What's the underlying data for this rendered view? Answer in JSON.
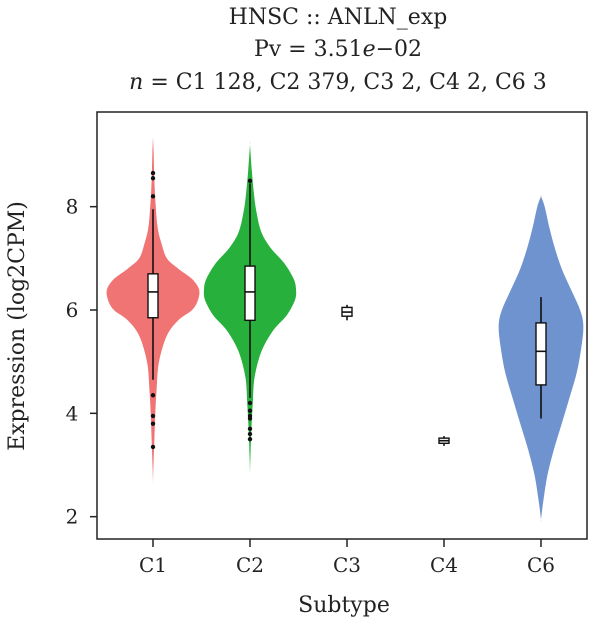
{
  "chart_data": {
    "type": "violin",
    "title_lines": {
      "line1": "HNSC :: ANLN_exp",
      "line2": "Pv = 3.51e−02",
      "line2_prefix": "Pv = 3.51",
      "line2_italic": "e",
      "line2_suffix": "−02",
      "line3_n": "n",
      "line3_rest": " = C1 128, C2 379, C3 2, C4 2, C6 3"
    },
    "xlabel": "Subtype",
    "ylabel": "Expression (log2CPM)",
    "ylim": [
      1.8,
      9.6
    ],
    "yticks": [
      2,
      4,
      6,
      8
    ],
    "categories": [
      "C1",
      "C2",
      "C3",
      "C4",
      "C6"
    ],
    "series": [
      {
        "name": "C1",
        "n": 128,
        "color": "#F07474",
        "has_violin": true,
        "violin_range": [
          2.65,
          9.35
        ],
        "violin_profile": [
          [
            2.65,
            0.0
          ],
          [
            3.0,
            0.01
          ],
          [
            3.5,
            0.03
          ],
          [
            4.0,
            0.05
          ],
          [
            4.5,
            0.08
          ],
          [
            5.0,
            0.13
          ],
          [
            5.5,
            0.3
          ],
          [
            5.8,
            0.55
          ],
          [
            6.0,
            0.85
          ],
          [
            6.2,
            0.98
          ],
          [
            6.4,
            1.0
          ],
          [
            6.6,
            0.85
          ],
          [
            6.8,
            0.55
          ],
          [
            7.0,
            0.3
          ],
          [
            7.3,
            0.18
          ],
          [
            7.6,
            0.1
          ],
          [
            8.0,
            0.06
          ],
          [
            8.5,
            0.03
          ],
          [
            9.0,
            0.015
          ],
          [
            9.35,
            0.0
          ]
        ],
        "box": {
          "q1": 5.85,
          "median": 6.35,
          "q3": 6.7,
          "whisker_low": 4.65,
          "whisker_high": 7.95
        },
        "outliers": [
          8.65,
          8.55,
          8.2,
          4.35,
          3.95,
          3.8,
          3.35
        ]
      },
      {
        "name": "C2",
        "n": 379,
        "color": "#27B03C",
        "has_violin": true,
        "violin_range": [
          2.85,
          9.2
        ],
        "violin_profile": [
          [
            2.85,
            0.0
          ],
          [
            3.2,
            0.01
          ],
          [
            3.7,
            0.03
          ],
          [
            4.2,
            0.06
          ],
          [
            4.7,
            0.1
          ],
          [
            5.2,
            0.25
          ],
          [
            5.6,
            0.5
          ],
          [
            5.9,
            0.8
          ],
          [
            6.2,
            0.98
          ],
          [
            6.4,
            1.0
          ],
          [
            6.6,
            0.95
          ],
          [
            6.9,
            0.75
          ],
          [
            7.2,
            0.45
          ],
          [
            7.5,
            0.25
          ],
          [
            7.9,
            0.14
          ],
          [
            8.3,
            0.08
          ],
          [
            8.7,
            0.04
          ],
          [
            9.2,
            0.0
          ]
        ],
        "box": {
          "q1": 5.8,
          "median": 6.35,
          "q3": 6.85,
          "whisker_low": 4.3,
          "whisker_high": 8.45
        },
        "outliers": [
          8.5,
          4.2,
          4.05,
          3.95,
          3.9,
          3.7,
          3.6,
          3.5
        ]
      },
      {
        "name": "C3",
        "n": 2,
        "color": "#333333",
        "has_violin": false,
        "box": {
          "q1": 5.88,
          "median": 5.96,
          "q3": 6.05,
          "whisker_low": 5.8,
          "whisker_high": 6.1
        },
        "outliers": []
      },
      {
        "name": "C4",
        "n": 2,
        "color": "#333333",
        "has_violin": false,
        "box": {
          "q1": 3.42,
          "median": 3.47,
          "q3": 3.52,
          "whisker_low": 3.37,
          "whisker_high": 3.56
        },
        "outliers": []
      },
      {
        "name": "C6",
        "n": 3,
        "color": "#6F93CF",
        "has_violin": true,
        "violin_range": [
          1.95,
          8.2
        ],
        "violin_profile": [
          [
            1.95,
            0.0
          ],
          [
            2.3,
            0.05
          ],
          [
            2.8,
            0.14
          ],
          [
            3.3,
            0.28
          ],
          [
            3.8,
            0.45
          ],
          [
            4.3,
            0.62
          ],
          [
            4.8,
            0.78
          ],
          [
            5.3,
            0.88
          ],
          [
            5.7,
            0.92
          ],
          [
            6.0,
            0.85
          ],
          [
            6.4,
            0.65
          ],
          [
            6.8,
            0.45
          ],
          [
            7.2,
            0.3
          ],
          [
            7.6,
            0.18
          ],
          [
            8.0,
            0.08
          ],
          [
            8.2,
            0.0
          ]
        ],
        "box": {
          "q1": 4.55,
          "median": 5.2,
          "q3": 5.75,
          "whisker_low": 3.9,
          "whisker_high": 6.25
        },
        "outliers": []
      }
    ]
  }
}
